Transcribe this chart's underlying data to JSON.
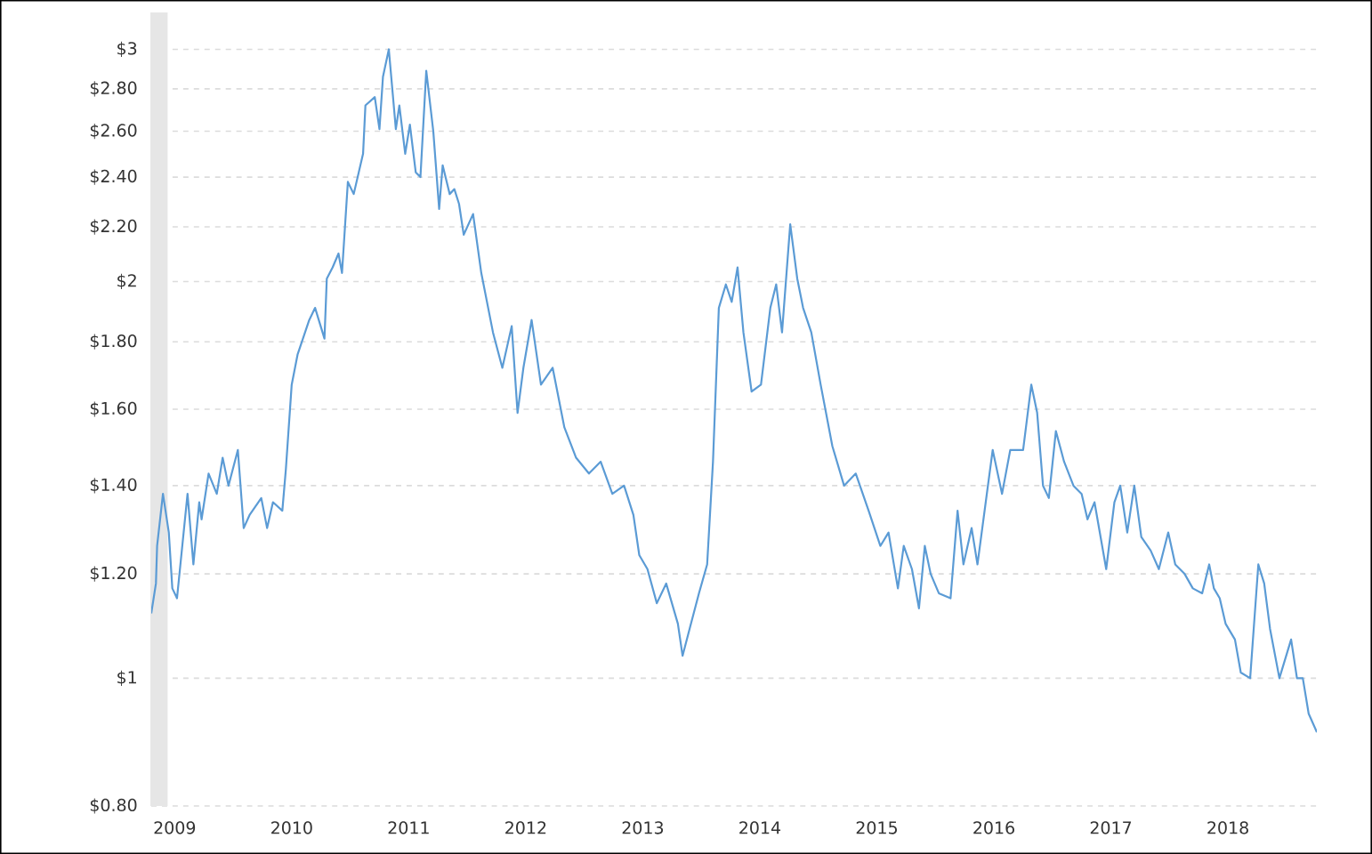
{
  "chart_data": {
    "type": "line",
    "x": [
      2008.8,
      2008.84,
      2008.85,
      2008.9,
      2008.95,
      2008.98,
      2009.02,
      2009.11,
      2009.16,
      2009.21,
      2009.23,
      2009.29,
      2009.36,
      2009.41,
      2009.46,
      2009.54,
      2009.59,
      2009.64,
      2009.74,
      2009.79,
      2009.84,
      2009.92,
      2009.95,
      2010.0,
      2010.05,
      2010.15,
      2010.2,
      2010.28,
      2010.3,
      2010.35,
      2010.4,
      2010.43,
      2010.48,
      2010.53,
      2010.61,
      2010.63,
      2010.71,
      2010.75,
      2010.78,
      2010.83,
      2010.89,
      2010.92,
      2010.97,
      2011.01,
      2011.06,
      2011.1,
      2011.15,
      2011.21,
      2011.26,
      2011.29,
      2011.35,
      2011.39,
      2011.43,
      2011.47,
      2011.55,
      2011.62,
      2011.72,
      2011.8,
      2011.88,
      2011.93,
      2011.98,
      2012.05,
      2012.13,
      2012.23,
      2012.33,
      2012.43,
      2012.54,
      2012.64,
      2012.74,
      2012.84,
      2012.92,
      2012.97,
      2013.04,
      2013.12,
      2013.2,
      2013.3,
      2013.34,
      2013.4,
      2013.48,
      2013.55,
      2013.6,
      2013.65,
      2013.71,
      2013.76,
      2013.81,
      2013.86,
      2013.93,
      2014.01,
      2014.09,
      2014.14,
      2014.19,
      2014.26,
      2014.32,
      2014.37,
      2014.44,
      2014.52,
      2014.62,
      2014.72,
      2014.82,
      2014.93,
      2015.03,
      2015.1,
      2015.18,
      2015.23,
      2015.3,
      2015.36,
      2015.41,
      2015.46,
      2015.53,
      2015.63,
      2015.69,
      2015.74,
      2015.81,
      2015.86,
      2015.94,
      2015.99,
      2016.07,
      2016.14,
      2016.25,
      2016.32,
      2016.37,
      2016.42,
      2016.47,
      2016.53,
      2016.6,
      2016.68,
      2016.75,
      2016.8,
      2016.86,
      2016.96,
      2017.03,
      2017.08,
      2017.14,
      2017.2,
      2017.26,
      2017.34,
      2017.41,
      2017.49,
      2017.55,
      2017.63,
      2017.7,
      2017.78,
      2017.84,
      2017.88,
      2017.93,
      2017.98,
      2018.06,
      2018.11,
      2018.19,
      2018.26,
      2018.31,
      2018.36,
      2018.44,
      2018.54,
      2018.59,
      2018.64,
      2018.69,
      2018.76
    ],
    "series": [
      {
        "color": "#5b9bd5",
        "values": [
          1.12,
          1.18,
          1.26,
          1.38,
          1.29,
          1.17,
          1.15,
          1.38,
          1.22,
          1.36,
          1.32,
          1.43,
          1.38,
          1.47,
          1.4,
          1.49,
          1.3,
          1.33,
          1.37,
          1.3,
          1.36,
          1.34,
          1.44,
          1.67,
          1.76,
          1.87,
          1.91,
          1.81,
          2.01,
          2.05,
          2.1,
          2.03,
          2.38,
          2.33,
          2.5,
          2.72,
          2.76,
          2.61,
          2.86,
          3.0,
          2.61,
          2.72,
          2.5,
          2.63,
          2.42,
          2.4,
          2.89,
          2.6,
          2.27,
          2.45,
          2.33,
          2.35,
          2.29,
          2.17,
          2.25,
          2.03,
          1.83,
          1.72,
          1.85,
          1.59,
          1.72,
          1.87,
          1.67,
          1.72,
          1.55,
          1.47,
          1.43,
          1.46,
          1.38,
          1.4,
          1.33,
          1.24,
          1.21,
          1.14,
          1.18,
          1.1,
          1.04,
          1.09,
          1.16,
          1.22,
          1.46,
          1.91,
          1.99,
          1.93,
          2.05,
          1.83,
          1.65,
          1.67,
          1.91,
          1.99,
          1.83,
          2.21,
          2.01,
          1.91,
          1.83,
          1.67,
          1.5,
          1.4,
          1.43,
          1.34,
          1.26,
          1.29,
          1.17,
          1.26,
          1.21,
          1.13,
          1.26,
          1.2,
          1.16,
          1.15,
          1.34,
          1.22,
          1.3,
          1.22,
          1.38,
          1.49,
          1.38,
          1.49,
          1.49,
          1.67,
          1.59,
          1.4,
          1.37,
          1.54,
          1.46,
          1.4,
          1.38,
          1.32,
          1.36,
          1.21,
          1.36,
          1.4,
          1.29,
          1.4,
          1.28,
          1.25,
          1.21,
          1.29,
          1.22,
          1.2,
          1.17,
          1.16,
          1.22,
          1.17,
          1.15,
          1.1,
          1.07,
          1.01,
          1.0,
          1.22,
          1.18,
          1.09,
          1.0,
          1.07,
          1.0,
          1.0,
          0.94,
          0.91
        ]
      }
    ],
    "xlim": [
      2008.8,
      2018.76
    ],
    "xticks": [
      2009,
      2010,
      2011,
      2012,
      2013,
      2014,
      2015,
      2016,
      2017,
      2018
    ],
    "ylim": [
      0.8,
      3.2
    ],
    "yticks": [
      {
        "value": 0.8,
        "label": "$0.80"
      },
      {
        "value": 1,
        "label": "$1"
      },
      {
        "value": 1.2,
        "label": "$1.20"
      },
      {
        "value": 1.4,
        "label": "$1.40"
      },
      {
        "value": 1.6,
        "label": "$1.60"
      },
      {
        "value": 1.8,
        "label": "$1.80"
      },
      {
        "value": 2,
        "label": "$2"
      },
      {
        "value": 2.2,
        "label": "$2.20"
      },
      {
        "value": 2.4,
        "label": "$2.40"
      },
      {
        "value": 2.6,
        "label": "$2.60"
      },
      {
        "value": 2.8,
        "label": "$2.80"
      },
      {
        "value": 3,
        "label": "$3"
      }
    ],
    "log": "y",
    "grid": "y",
    "marker": "none",
    "line_style": "solid",
    "bands": [
      {
        "axis": "x",
        "from": 2008.8,
        "to": 2008.94,
        "color": "#e6e6e6"
      }
    ]
  }
}
